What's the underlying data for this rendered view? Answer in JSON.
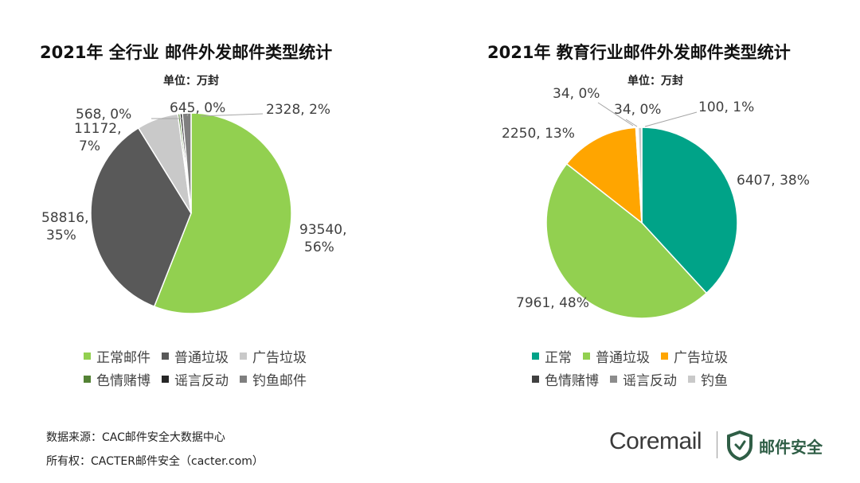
{
  "chart_data": [
    {
      "type": "pie",
      "title": "2021年 全行业 邮件外发邮件类型统计",
      "unit": "单位：万封",
      "categories": [
        "正常邮件",
        "普通垃圾",
        "广告垃圾",
        "色情赌博",
        "谣言反动",
        "钓鱼邮件"
      ],
      "values": [
        93540,
        58816,
        11172,
        568,
        645,
        2328
      ],
      "percent_labels": [
        "93540, 56%",
        "58816, 35%",
        "11172, 7%",
        "568, 0%",
        "645, 0%",
        "2328, 2%"
      ],
      "colors": [
        "#92d050",
        "#595959",
        "#c9c9c9",
        "#548235",
        "#262626",
        "#7f7f7f"
      ],
      "legend_placement": "bottom"
    },
    {
      "type": "pie",
      "title": "2021年 教育行业邮件外发邮件类型统计",
      "unit": "单位：万封",
      "categories": [
        "正常",
        "普通垃圾",
        "广告垃圾",
        "色情赌博",
        "谣言反动",
        "钓鱼"
      ],
      "values": [
        6407,
        7961,
        2250,
        34,
        34,
        100
      ],
      "percent_labels": [
        "6407, 38%",
        "7961, 48%",
        "2250, 13%",
        "34, 0%",
        "34, 0%",
        "100, 1%"
      ],
      "colors": [
        "#00a388",
        "#92d050",
        "#ffa500",
        "#404040",
        "#8c8c8c",
        "#c9c9c9"
      ],
      "legend_placement": "bottom"
    }
  ],
  "footer": {
    "source": "数据来源：CAC邮件安全大数据中心",
    "copyright": "所有权：CACTER邮件安全（cacter.com）"
  },
  "brand": {
    "name": "Coremail",
    "product": "邮件安全",
    "shield_color": "#2f5e46"
  }
}
